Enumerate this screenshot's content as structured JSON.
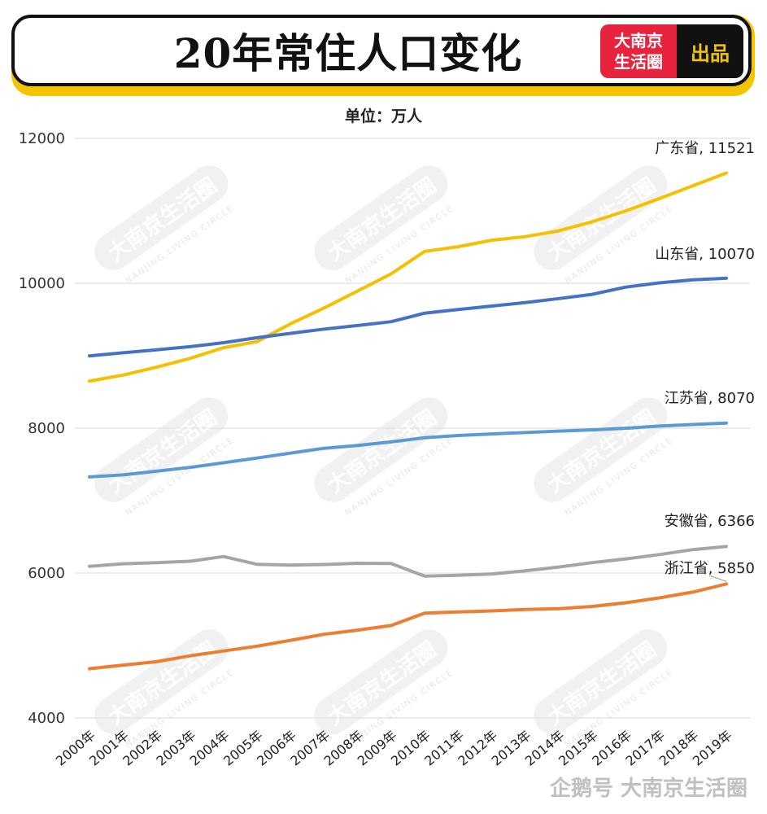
{
  "header": {
    "title": "20年常住人口变化",
    "brand_line1": "大南京",
    "brand_line2": "生活圈",
    "brand_tag": "出品",
    "unit": "单位：万人"
  },
  "watermark": {
    "text": "大南京生活圈",
    "sub": "NANJING LIVING CIRCLE"
  },
  "footer": {
    "text": "企鹅号 大南京生活圈"
  },
  "chart_data": {
    "type": "line",
    "title": "20年常住人口变化",
    "ylabel": "单位：万人",
    "ylim": [
      4000,
      12000
    ],
    "yticks": [
      4000,
      6000,
      8000,
      10000,
      12000
    ],
    "grid": true,
    "x": [
      "2000年",
      "2001年",
      "2002年",
      "2003年",
      "2004年",
      "2005年",
      "2006年",
      "2007年",
      "2008年",
      "2009年",
      "2010年",
      "2011年",
      "2012年",
      "2013年",
      "2014年",
      "2015年",
      "2016年",
      "2017年",
      "2018年",
      "2019年"
    ],
    "series": [
      {
        "name": "广东省",
        "end_label": "广东省, 11521",
        "color": "#f5c000",
        "values": [
          8650,
          8733,
          8842,
          8963,
          9111,
          9194,
          9442,
          9660,
          9893,
          10130,
          10441,
          10505,
          10594,
          10644,
          10724,
          10849,
          10999,
          11169,
          11346,
          11521
        ]
      },
      {
        "name": "山东省",
        "end_label": "山东省, 10070",
        "color": "#4472c4",
        "values": [
          8998,
          9041,
          9082,
          9125,
          9180,
          9248,
          9309,
          9367,
          9417,
          9470,
          9588,
          9637,
          9685,
          9733,
          9789,
          9847,
          9947,
          10006,
          10047,
          10070
        ]
      },
      {
        "name": "江苏省",
        "end_label": "江苏省, 8070",
        "color": "#5b9bd5",
        "values": [
          7327,
          7355,
          7406,
          7458,
          7523,
          7588,
          7656,
          7723,
          7762,
          7810,
          7869,
          7899,
          7920,
          7939,
          7960,
          7976,
          7999,
          8029,
          8051,
          8070
        ]
      },
      {
        "name": "安徽省",
        "end_label": "安徽省, 6366",
        "color": "#a5a5a5",
        "values": [
          6093,
          6128,
          6144,
          6163,
          6228,
          6120,
          6110,
          6118,
          6135,
          6131,
          5957,
          5968,
          5988,
          6030,
          6083,
          6144,
          6196,
          6255,
          6324,
          6366
        ]
      },
      {
        "name": "浙江省",
        "end_label": "浙江省, 5850",
        "color": "#ed7d31",
        "values": [
          4680,
          4729,
          4776,
          4857,
          4925,
          4991,
          5072,
          5155,
          5212,
          5276,
          5447,
          5463,
          5477,
          5498,
          5508,
          5539,
          5590,
          5657,
          5737,
          5850
        ]
      }
    ]
  }
}
